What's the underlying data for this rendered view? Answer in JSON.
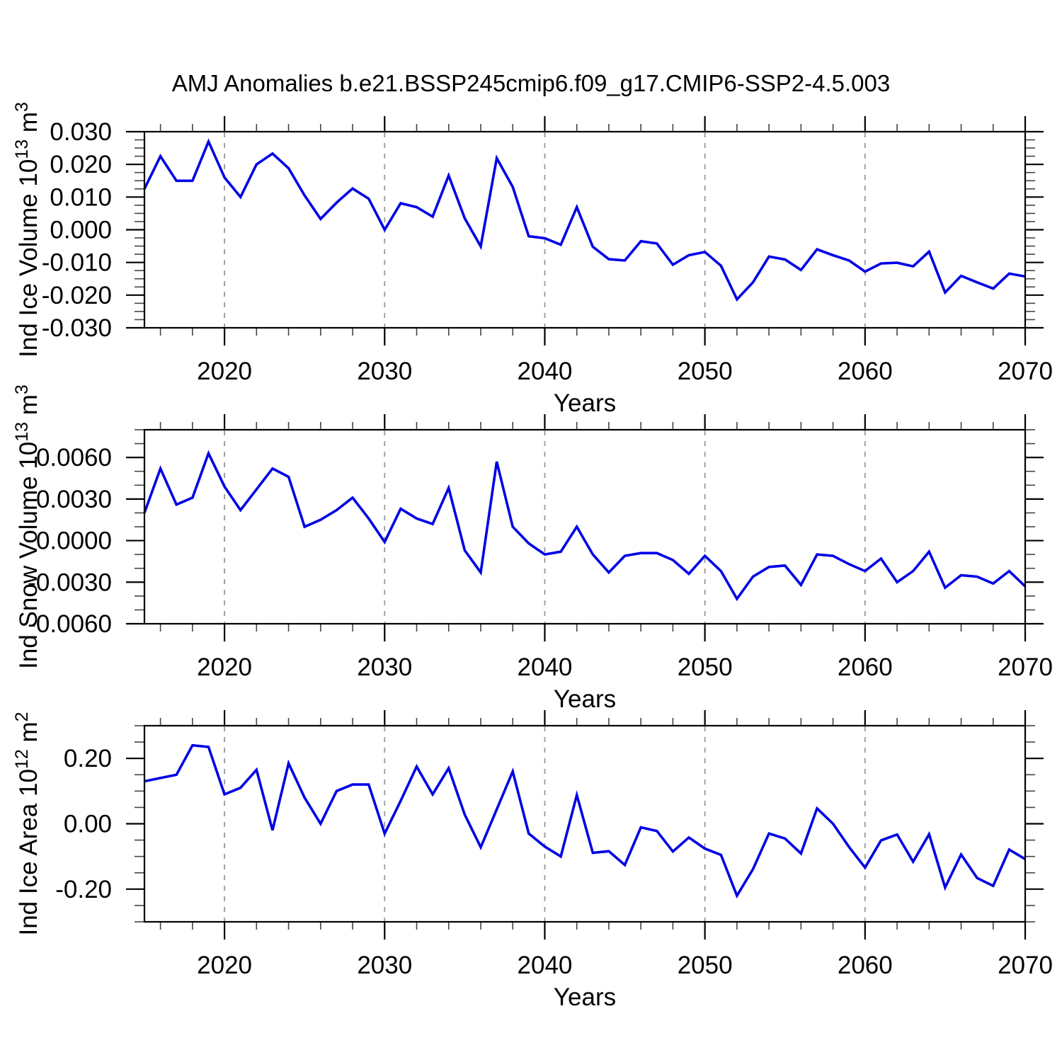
{
  "title": "AMJ Anomalies b.e21.BSSP245cmip6.f09_g17.CMIP6-SSP2-4.5.003",
  "colors": {
    "line": "#0000e6",
    "grid": "#999999",
    "frame": "#000000",
    "minor_tick": "#444444"
  },
  "years": [
    2015,
    2016,
    2017,
    2018,
    2019,
    2020,
    2021,
    2022,
    2023,
    2024,
    2025,
    2026,
    2027,
    2028,
    2029,
    2030,
    2031,
    2032,
    2033,
    2034,
    2035,
    2036,
    2037,
    2038,
    2039,
    2040,
    2041,
    2042,
    2043,
    2044,
    2045,
    2046,
    2047,
    2048,
    2049,
    2050,
    2051,
    2052,
    2053,
    2054,
    2055,
    2056,
    2057,
    2058,
    2059,
    2060,
    2061,
    2062,
    2063,
    2064,
    2065,
    2066,
    2067,
    2068,
    2069,
    2070
  ],
  "xlabel": "Years",
  "xlim": [
    2015,
    2070
  ],
  "xticks": [
    2020,
    2030,
    2040,
    2050,
    2060,
    2070
  ],
  "xtick_labels": [
    "2020",
    "2030",
    "2040",
    "2050",
    "2060",
    "2070"
  ],
  "x_minor_step": 2,
  "grid_years": [
    2020,
    2030,
    2040,
    2050,
    2060
  ],
  "chart_data": [
    {
      "type": "line",
      "ylabel_plain": "Ind Ice Volume 10^13 m^3",
      "ylabel_parts": [
        {
          "text": "Ind Ice Volume 10",
          "sup": false
        },
        {
          "text": "13",
          "sup": true
        },
        {
          "text": " m",
          "sup": false
        },
        {
          "text": "3",
          "sup": true
        }
      ],
      "ylim": [
        -0.03,
        0.03
      ],
      "yticks": [
        0.03,
        0.02,
        0.01,
        0.0,
        -0.01,
        -0.02,
        -0.03
      ],
      "ytick_labels": [
        "0.030",
        "0.020",
        "0.010",
        "0.000",
        "-0.010",
        "-0.020",
        "-0.030"
      ],
      "y_minor_step": 0.0025,
      "values": [
        0.0125,
        0.0225,
        0.015,
        0.015,
        0.027,
        0.016,
        0.01,
        0.02,
        0.0233,
        0.0188,
        0.0105,
        0.0033,
        0.0083,
        0.0126,
        0.0095,
        0.0,
        0.0081,
        0.0069,
        0.004,
        0.0166,
        0.0035,
        -0.0051,
        0.0219,
        0.0131,
        -0.002,
        -0.0026,
        -0.0046,
        0.0069,
        -0.0052,
        -0.009,
        -0.0094,
        -0.0035,
        -0.0042,
        -0.0107,
        -0.0078,
        -0.0068,
        -0.011,
        -0.0213,
        -0.0161,
        -0.0082,
        -0.0091,
        -0.0123,
        -0.006,
        -0.0078,
        -0.0094,
        -0.0128,
        -0.0103,
        -0.0101,
        -0.0112,
        -0.0067,
        -0.0192,
        -0.0141,
        -0.0161,
        -0.018,
        -0.0134,
        -0.0143
      ]
    },
    {
      "type": "line",
      "ylabel_plain": "Ind Snow Volume 10^13 m^3",
      "ylabel_parts": [
        {
          "text": "Ind Snow Volume 10",
          "sup": false
        },
        {
          "text": "13",
          "sup": true
        },
        {
          "text": " m",
          "sup": false
        },
        {
          "text": "3",
          "sup": true
        }
      ],
      "ylim": [
        -0.006,
        0.008
      ],
      "yticks": [
        0.006,
        0.003,
        0.0,
        -0.003,
        -0.006
      ],
      "ytick_labels": [
        "0.0060",
        "0.0030",
        "0.0000",
        "-0.0030",
        "-0.0060"
      ],
      "y_minor_step": 0.001,
      "values": [
        0.002,
        0.0052,
        0.0026,
        0.0031,
        0.0063,
        0.0039,
        0.0022,
        0.0037,
        0.0052,
        0.0046,
        0.001,
        0.0015,
        0.0022,
        0.0031,
        0.0016,
        -0.0001,
        0.0023,
        0.0016,
        0.0012,
        0.0038,
        -0.0007,
        -0.0023,
        0.0057,
        0.001,
        -0.0002,
        -0.001,
        -0.0008,
        0.001,
        -0.001,
        -0.0023,
        -0.0011,
        -0.0009,
        -0.0009,
        -0.0014,
        -0.0024,
        -0.0011,
        -0.0022,
        -0.0042,
        -0.0026,
        -0.0019,
        -0.0018,
        -0.0032,
        -0.001,
        -0.0011,
        -0.0017,
        -0.0022,
        -0.0013,
        -0.003,
        -0.0022,
        -0.0008,
        -0.0034,
        -0.0025,
        -0.0026,
        -0.0031,
        -0.0022,
        -0.0033
      ]
    },
    {
      "type": "line",
      "ylabel_plain": "Ind Ice Area 10^12 m^2",
      "ylabel_parts": [
        {
          "text": "Ind Ice Area 10",
          "sup": false
        },
        {
          "text": "12",
          "sup": true
        },
        {
          "text": " m",
          "sup": false
        },
        {
          "text": "2",
          "sup": true
        }
      ],
      "ylim": [
        -0.3,
        0.3
      ],
      "yticks": [
        0.2,
        0.0,
        -0.2
      ],
      "ytick_labels": [
        "0.20",
        "0.00",
        "-0.20"
      ],
      "y_minor_step": 0.05,
      "values": [
        0.13,
        0.14,
        0.15,
        0.24,
        0.235,
        0.09,
        0.11,
        0.165,
        -0.02,
        0.185,
        0.08,
        0.0,
        0.1,
        0.12,
        0.12,
        -0.03,
        0.07,
        0.175,
        0.09,
        0.17,
        0.028,
        -0.072,
        0.044,
        0.16,
        -0.03,
        -0.07,
        -0.1,
        0.088,
        -0.089,
        -0.084,
        -0.126,
        -0.011,
        -0.022,
        -0.085,
        -0.042,
        -0.076,
        -0.095,
        -0.22,
        -0.139,
        -0.03,
        -0.045,
        -0.091,
        0.047,
        0.0,
        -0.071,
        -0.134,
        -0.051,
        -0.033,
        -0.116,
        -0.032,
        -0.195,
        -0.094,
        -0.166,
        -0.19,
        -0.079,
        -0.108
      ]
    }
  ]
}
